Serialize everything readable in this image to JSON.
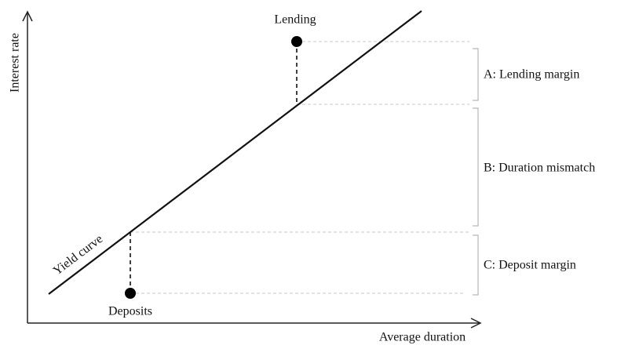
{
  "axes": {
    "y_label": "Interest rate",
    "x_label": "Average duration"
  },
  "curve": {
    "label": "Yield curve"
  },
  "points": [
    {
      "label": "Lending"
    },
    {
      "label": "Deposits"
    }
  ],
  "brackets": [
    {
      "label": "A: Lending margin"
    },
    {
      "label": "B: Duration mismatch"
    },
    {
      "label": "C: Deposit margin"
    }
  ]
}
